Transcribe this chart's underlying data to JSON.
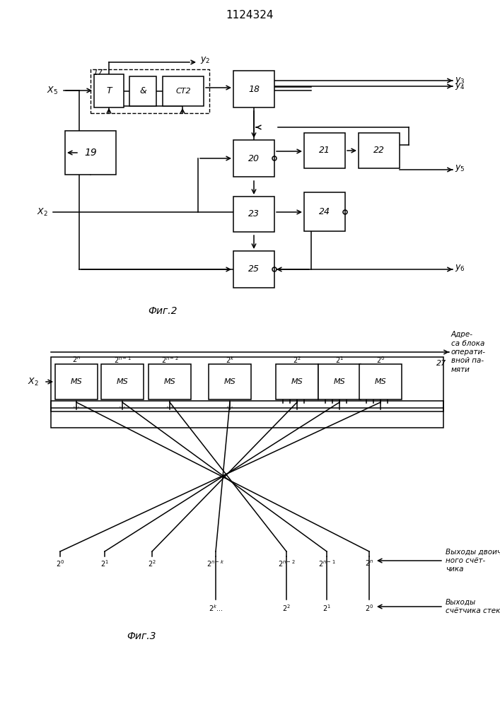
{
  "title": "1124324",
  "fig2_label": "Фиг.2",
  "fig3_label": "Фиг.3",
  "bg_color": "#ffffff",
  "lc": "#000000",
  "bc": "#ffffff"
}
